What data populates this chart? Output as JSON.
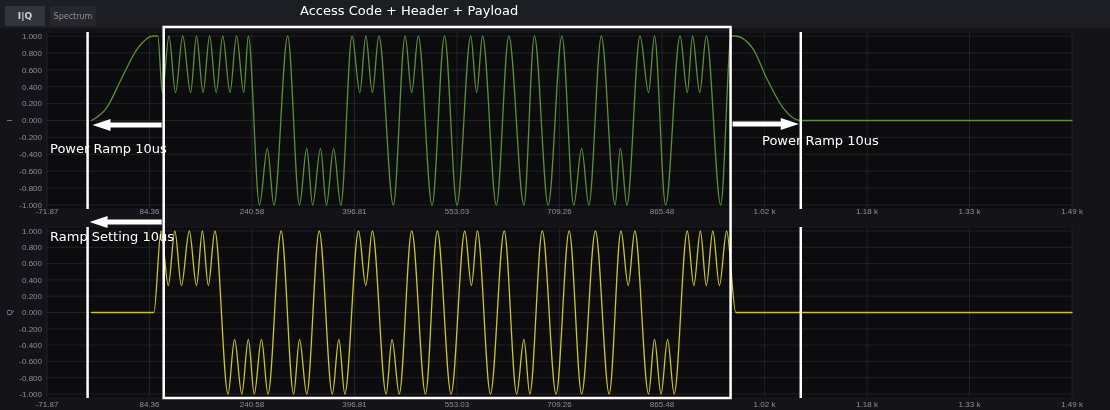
{
  "chart_data": [
    {
      "type": "line",
      "ylabel": "I",
      "annotations": [
        "I|Q",
        "Spectrum",
        "Access Code + Header + Payload",
        "Power Ramp 10us",
        "Power Ramp 10us"
      ],
      "xlim": [
        -71.87,
        1490.38
      ],
      "xticks": [
        -71.87,
        84.36,
        240.58,
        396.81,
        553.03,
        709.26,
        865.48,
        {
          "value": 1021.7,
          "label": "1.02 k"
        },
        {
          "value": 1177.93,
          "label": "1.18 k"
        },
        {
          "value": 1334.16,
          "label": "1.33 k"
        },
        {
          "value": 1490.38,
          "label": "1.49 k"
        }
      ],
      "ylim": [
        -1,
        1
      ],
      "yticks": [
        {
          "value": -1,
          "label": "-1.000"
        },
        {
          "value": -0.8,
          "label": "-0.800"
        },
        {
          "value": -0.6,
          "label": "-0.600"
        },
        {
          "value": -0.4,
          "label": "-0.400"
        },
        {
          "value": -0.2,
          "label": "-0.200"
        },
        {
          "value": 0,
          "label": "0.000"
        },
        {
          "value": 0.2,
          "label": "0.200"
        },
        {
          "value": 0.4,
          "label": "0.400"
        },
        {
          "value": 0.6,
          "label": "0.600"
        },
        {
          "value": 0.8,
          "label": "0.800"
        },
        {
          "value": 1,
          "label": "1.000"
        }
      ],
      "grid": true,
      "ref_lines": [
        {
          "axis": "x",
          "value": -10,
          "color": "#ffffff"
        },
        {
          "axis": "x",
          "value": 1077,
          "color": "#ffffff"
        }
      ],
      "series": [
        {
          "color": "#5e8f3a",
          "x": [
            -4,
            19,
            42,
            66,
            90,
            97,
            104,
            114,
            124,
            135,
            147,
            156,
            166,
            176,
            186,
            196,
            207,
            217,
            228,
            235,
            252,
            264,
            274,
            295,
            313,
            324,
            333,
            345,
            354,
            365,
            376,
            393,
            405,
            414,
            424,
            434,
            456,
            474,
            484,
            494,
            515,
            534,
            553,
            574,
            583,
            592,
            613,
            632,
            655,
            671,
            692,
            713,
            731,
            743,
            754,
            773,
            794,
            802,
            812,
            832,
            845,
            854,
            871,
            893,
            904,
            912,
            923,
            933,
            955,
            971,
            977,
            1004,
            1025,
            1050,
            1076,
            1490.38
          ],
          "values": [
            0,
            0.15,
            0.5,
            0.85,
            1,
            1,
            0.33,
            1,
            0.33,
            1,
            0.33,
            1,
            0.33,
            1,
            0.33,
            1,
            0.33,
            1,
            0.33,
            1,
            -1,
            -0.33,
            -1,
            1,
            -1,
            -0.33,
            -1,
            -0.33,
            -1,
            -0.33,
            -1,
            1,
            0.33,
            1,
            0.33,
            1,
            -1,
            1,
            0.33,
            1,
            -1,
            1,
            -1,
            1,
            0.33,
            1,
            -1,
            1,
            -1,
            1,
            -1,
            1,
            -1,
            -0.33,
            -1,
            1,
            -1,
            -0.33,
            -1,
            1,
            0.33,
            1,
            -1,
            1,
            0.33,
            1,
            0.33,
            1,
            -1,
            1,
            1,
            0.85,
            0.5,
            0.15,
            0,
            0
          ]
        }
      ]
    },
    {
      "type": "line",
      "ylabel": "Q",
      "annotations": [
        "Ramp Setting 10us"
      ],
      "xlim": [
        -71.87,
        1490.38
      ],
      "xticks": [
        -71.87,
        84.36,
        240.58,
        396.81,
        553.03,
        709.26,
        865.48,
        {
          "value": 1021.7,
          "label": "1.02 k"
        },
        {
          "value": 1177.93,
          "label": "1.18 k"
        },
        {
          "value": 1334.16,
          "label": "1.33 k"
        },
        {
          "value": 1490.38,
          "label": "1.49 k"
        }
      ],
      "ylim": [
        -1,
        1
      ],
      "yticks": [
        {
          "value": -1,
          "label": "-1.000"
        },
        {
          "value": -0.8,
          "label": "-0.800"
        },
        {
          "value": -0.6,
          "label": "-0.600"
        },
        {
          "value": -0.4,
          "label": "-0.400"
        },
        {
          "value": -0.2,
          "label": "-0.200"
        },
        {
          "value": 0,
          "label": "0.000"
        },
        {
          "value": 0.2,
          "label": "0.200"
        },
        {
          "value": 0.4,
          "label": "0.400"
        },
        {
          "value": 0.6,
          "label": "0.600"
        },
        {
          "value": 0.8,
          "label": "0.800"
        },
        {
          "value": 1,
          "label": "1.000"
        }
      ],
      "grid": true,
      "ref_lines": [
        {
          "axis": "x",
          "value": -10,
          "color": "#ffffff"
        },
        {
          "axis": "x",
          "value": 1077,
          "color": "#ffffff"
        }
      ],
      "series": [
        {
          "color": "#c9c72a",
          "x": [
            -4,
            91,
            102,
            113,
            123,
            133,
            145,
            156,
            165,
            174,
            184,
            204,
            214,
            225,
            235,
            244,
            255,
            265,
            285,
            304,
            313,
            324,
            343,
            363,
            373,
            382,
            403,
            414,
            424,
            445,
            454,
            465,
            484,
            505,
            523,
            544,
            565,
            575,
            584,
            604,
            625,
            644,
            655,
            664,
            683,
            704,
            724,
            743,
            764,
            785,
            803,
            814,
            824,
            845,
            854,
            864,
            874,
            884,
            904,
            914,
            924,
            933,
            943,
            953,
            964,
            978,
            1490.38
          ],
          "values": [
            0,
            0,
            1,
            0.33,
            1,
            0.33,
            1,
            0.33,
            1,
            0.33,
            1,
            -1,
            -0.33,
            -1,
            -0.33,
            -1,
            -0.33,
            -1,
            1,
            -1,
            -0.33,
            -1,
            1,
            -1,
            -0.33,
            -1,
            1,
            0.33,
            1,
            -1,
            -0.33,
            -1,
            1,
            -1,
            1,
            -1,
            1,
            0.33,
            1,
            -1,
            1,
            -1,
            -0.33,
            -1,
            1,
            -1,
            1,
            -1,
            1,
            -1,
            1,
            0.33,
            1,
            -1,
            -0.33,
            -1,
            -0.33,
            -1,
            1,
            0.33,
            1,
            0.33,
            1,
            0.33,
            1,
            0,
            0
          ]
        }
      ]
    }
  ]
}
